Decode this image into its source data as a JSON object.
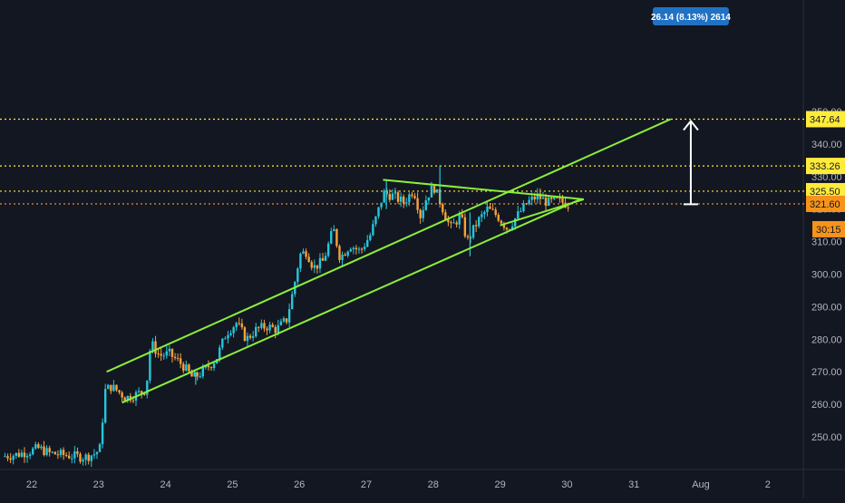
{
  "chart_data": {
    "type": "candlestick",
    "x_ticks": [
      {
        "label": "22",
        "day": 22
      },
      {
        "label": "23",
        "day": 23
      },
      {
        "label": "24",
        "day": 24
      },
      {
        "label": "25",
        "day": 25
      },
      {
        "label": "26",
        "day": 26
      },
      {
        "label": "27",
        "day": 27
      },
      {
        "label": "28",
        "day": 28
      },
      {
        "label": "29",
        "day": 29
      },
      {
        "label": "30",
        "day": 30
      },
      {
        "label": "31",
        "day": 31
      },
      {
        "label": "Aug",
        "day": 32
      },
      {
        "label": "2",
        "day": 33
      }
    ],
    "y_ticks": [
      {
        "label": "250.00",
        "value": 250
      },
      {
        "label": "260.00",
        "value": 260
      },
      {
        "label": "270.00",
        "value": 270
      },
      {
        "label": "280.00",
        "value": 280
      },
      {
        "label": "290.00",
        "value": 290
      },
      {
        "label": "300.00",
        "value": 300
      },
      {
        "label": "310.00",
        "value": 310
      },
      {
        "label": "320.00",
        "value": 320
      },
      {
        "label": "330.00",
        "value": 330
      },
      {
        "label": "340.00",
        "value": 340
      },
      {
        "label": "350.00",
        "value": 350
      }
    ],
    "ylim": [
      242,
      354
    ],
    "xlim": [
      21.6,
      34.0
    ],
    "price_path": [
      [
        21.6,
        244
      ],
      [
        21.8,
        244.5
      ],
      [
        22.0,
        245.5
      ],
      [
        22.15,
        246.5
      ],
      [
        22.3,
        245
      ],
      [
        22.5,
        244.5
      ],
      [
        22.7,
        244
      ],
      [
        22.85,
        243.8
      ],
      [
        23.0,
        245
      ],
      [
        23.08,
        247
      ],
      [
        23.12,
        264
      ],
      [
        23.18,
        266
      ],
      [
        23.3,
        264.5
      ],
      [
        23.45,
        262
      ],
      [
        23.6,
        263
      ],
      [
        23.75,
        264.5
      ],
      [
        23.82,
        279
      ],
      [
        23.95,
        275
      ],
      [
        24.1,
        275.5
      ],
      [
        24.3,
        272
      ],
      [
        24.45,
        268
      ],
      [
        24.6,
        270
      ],
      [
        24.8,
        274
      ],
      [
        24.95,
        282
      ],
      [
        25.1,
        285
      ],
      [
        25.25,
        280
      ],
      [
        25.4,
        283
      ],
      [
        25.55,
        284
      ],
      [
        25.7,
        283
      ],
      [
        25.85,
        286
      ],
      [
        25.95,
        295
      ],
      [
        26.05,
        306
      ],
      [
        26.15,
        307
      ],
      [
        26.25,
        302
      ],
      [
        26.4,
        304
      ],
      [
        26.55,
        314
      ],
      [
        26.65,
        305
      ],
      [
        26.8,
        309
      ],
      [
        26.95,
        307
      ],
      [
        27.1,
        312
      ],
      [
        27.2,
        318
      ],
      [
        27.3,
        325
      ],
      [
        27.45,
        324
      ],
      [
        27.6,
        322
      ],
      [
        27.75,
        326
      ],
      [
        27.85,
        318
      ],
      [
        27.95,
        324
      ],
      [
        28.05,
        327
      ],
      [
        28.15,
        322
      ],
      [
        28.3,
        314
      ],
      [
        28.45,
        318
      ],
      [
        28.55,
        310
      ],
      [
        28.7,
        316
      ],
      [
        28.85,
        320
      ],
      [
        29.0,
        318
      ],
      [
        29.15,
        314
      ],
      [
        29.3,
        318
      ],
      [
        29.45,
        322
      ],
      [
        29.6,
        324
      ],
      [
        29.75,
        322
      ],
      [
        29.9,
        322.5
      ],
      [
        30.05,
        321.6
      ]
    ],
    "spikes": [
      {
        "day": 27.3,
        "high": 329,
        "low": 320
      },
      {
        "day": 28.1,
        "high": 333.5,
        "low": 322
      },
      {
        "day": 28.55,
        "high": 319,
        "low": 305.5
      },
      {
        "day": 24.45,
        "high": 270,
        "low": 266
      }
    ],
    "trendlines": [
      {
        "name": "channel-upper",
        "from": [
          23.12,
          270
        ],
        "to": [
          31.55,
          347.64
        ]
      },
      {
        "name": "channel-lower",
        "from": [
          23.35,
          260.5
        ],
        "to": [
          30.2,
          323
        ]
      },
      {
        "name": "triangle-upper",
        "from": [
          27.25,
          329
        ],
        "to": [
          30.25,
          323
        ]
      },
      {
        "name": "triangle-lower",
        "from": [
          29.0,
          315
        ],
        "to": [
          30.25,
          323
        ]
      }
    ],
    "price_levels": [
      {
        "value": 347.64,
        "label": "347.64",
        "color": "#ffeb3b",
        "label_bg": "#ffeb3b",
        "label_fg": "#131722",
        "dotted": true
      },
      {
        "value": 333.26,
        "label": "333.26",
        "color": "#ffeb3b",
        "label_bg": "#ffeb3b",
        "label_fg": "#131722",
        "dotted": true
      },
      {
        "value": 325.5,
        "label": "325.50",
        "color": "#ffeb3b",
        "label_bg": "#ffeb3b",
        "label_fg": "#131722",
        "dotted": true
      },
      {
        "value": 321.6,
        "label": "321.60",
        "color": "#f59e2e",
        "label_bg": "#f7931a",
        "label_fg": "#131722",
        "dotted": true
      }
    ],
    "countdown": {
      "label": "30:15",
      "bg": "#f7931a",
      "fg": "#131722"
    },
    "measure": {
      "from_value": 321.5,
      "to_value": 347.64,
      "day": 31.85,
      "label": "26.14 (8.13%) 2614",
      "label_bg": "#2172c4",
      "label_fg": "#ffffff"
    },
    "colors": {
      "background": "#131722",
      "up": "#26c6da",
      "down": "#f7a23a",
      "trendline": "#8bef3a",
      "axis_text": "#b2b5be",
      "grid_axis_line": "#2a2e39"
    }
  }
}
